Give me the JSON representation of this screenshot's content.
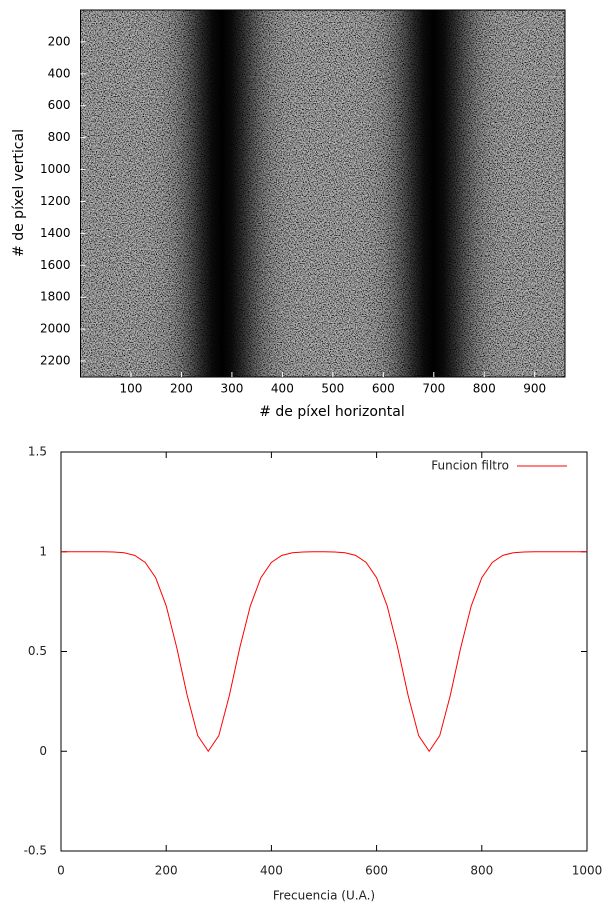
{
  "chart_data": [
    {
      "type": "image",
      "xlabel": "# de píxel horizontal",
      "ylabel": "# de píxel vertical",
      "xlim": [
        0,
        960
      ],
      "xticks": [
        100,
        200,
        300,
        400,
        500,
        600,
        700,
        800,
        900
      ],
      "ylim": [
        2300,
        0
      ],
      "yticks": [
        200,
        400,
        600,
        800,
        1000,
        1200,
        1400,
        1600,
        1800,
        2000,
        2200
      ]
    },
    {
      "type": "line",
      "xlabel": "Frecuencia (U.A.)",
      "x": [
        0,
        20,
        40,
        60,
        80,
        100,
        120,
        140,
        160,
        180,
        200,
        220,
        240,
        260,
        280,
        300,
        320,
        340,
        360,
        380,
        400,
        420,
        440,
        460,
        480,
        500,
        520,
        540,
        560,
        580,
        600,
        620,
        640,
        660,
        680,
        700,
        720,
        740,
        760,
        780,
        800,
        820,
        840,
        860,
        880,
        900,
        920,
        940,
        960,
        980,
        1000
      ],
      "series": [
        {
          "name": "Funcion filtro",
          "color": "#ff0000",
          "values": [
            1,
            1,
            1,
            1,
            1,
            0.999,
            0.995,
            0.982,
            0.947,
            0.87,
            0.729,
            0.52,
            0.279,
            0.078,
            0,
            0.078,
            0.279,
            0.52,
            0.729,
            0.87,
            0.947,
            0.982,
            0.995,
            0.999,
            1,
            1,
            0.999,
            0.995,
            0.982,
            0.947,
            0.87,
            0.729,
            0.52,
            0.279,
            0.078,
            0,
            0.078,
            0.279,
            0.52,
            0.729,
            0.87,
            0.947,
            0.982,
            0.995,
            0.999,
            1,
            1,
            1,
            1,
            1,
            1
          ]
        }
      ],
      "xlim": [
        0,
        1000
      ],
      "xticks": [
        0,
        200,
        400,
        600,
        800,
        1000
      ],
      "ylim": [
        -0.5,
        1.5
      ],
      "yticks": [
        -0.5,
        0,
        0.5,
        1,
        1.5
      ],
      "legend": "top-right"
    }
  ]
}
